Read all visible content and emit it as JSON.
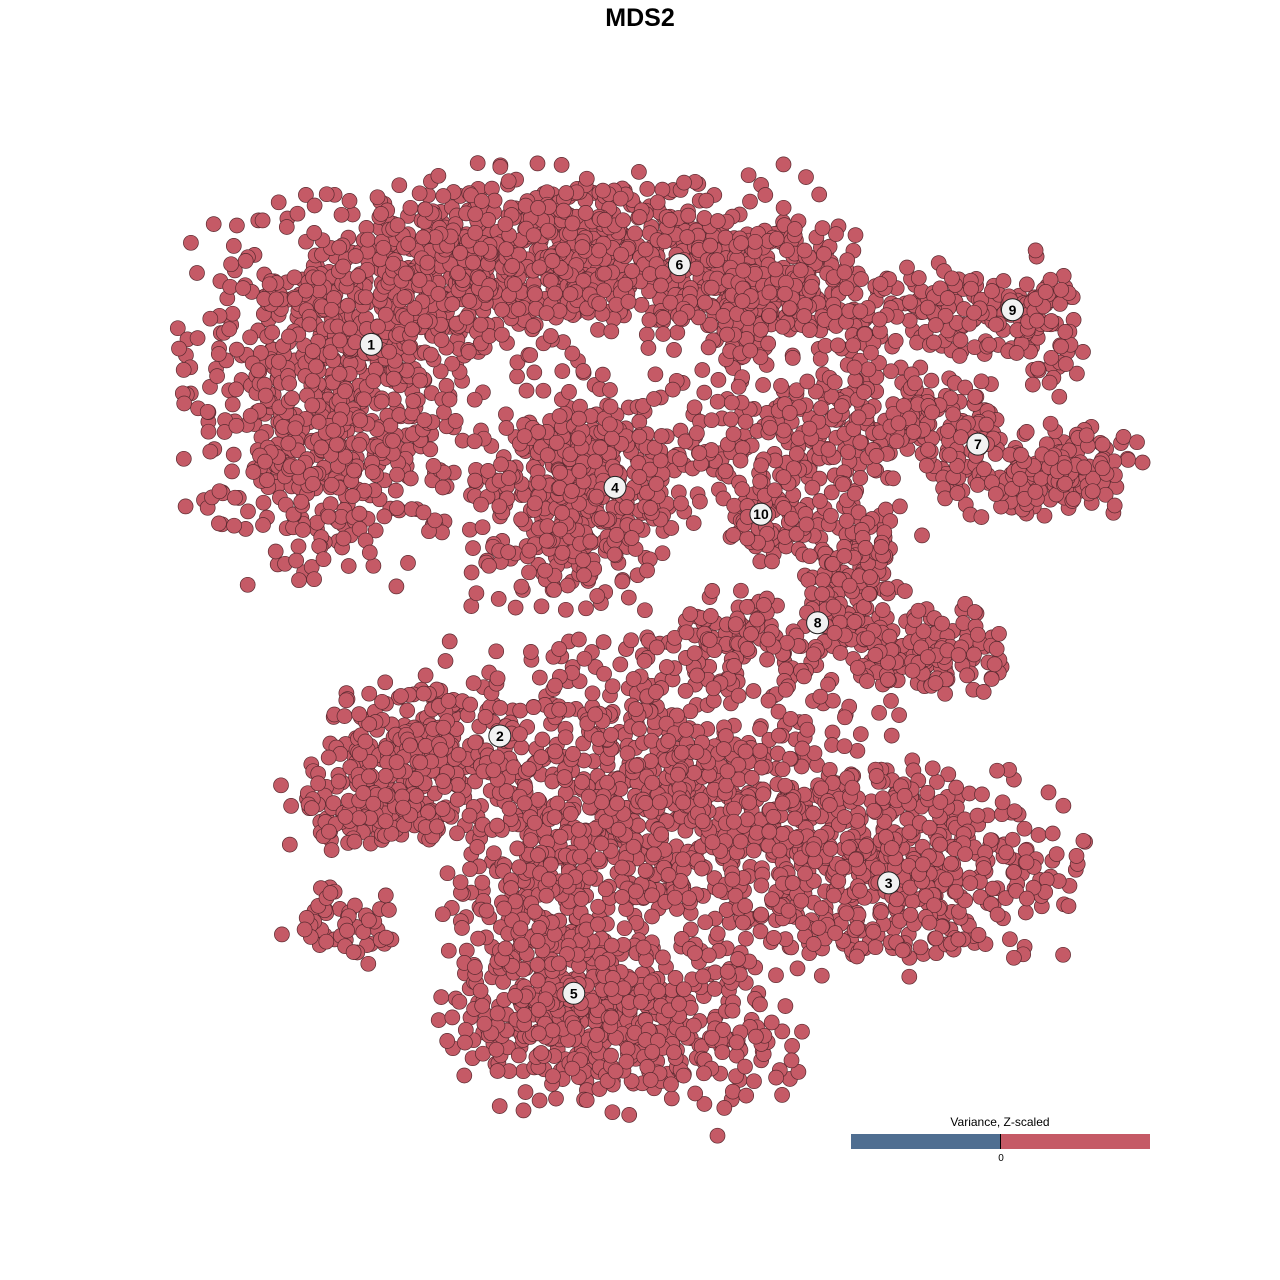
{
  "chart_data": {
    "type": "scatter",
    "title": "MDS2",
    "xlabel": "",
    "ylabel": "",
    "grid": false,
    "axes_visible": false,
    "point_color": "#c55a66",
    "point_outline": "#5a2a30",
    "cluster_labels": [
      {
        "label": "1",
        "x": -28.0,
        "y": 30.8
      },
      {
        "label": "2",
        "x": -14.6,
        "y": -10.0
      },
      {
        "label": "3",
        "x": 25.9,
        "y": -25.3
      },
      {
        "label": "4",
        "x": -2.6,
        "y": 15.9
      },
      {
        "label": "5",
        "x": -6.9,
        "y": -36.8
      },
      {
        "label": "6",
        "x": 4.1,
        "y": 39.1
      },
      {
        "label": "7",
        "x": 35.2,
        "y": 20.4
      },
      {
        "label": "8",
        "x": 18.5,
        "y": 1.8
      },
      {
        "label": "9",
        "x": 38.8,
        "y": 34.4
      },
      {
        "label": "10",
        "x": 12.6,
        "y": 13.1
      }
    ],
    "legend": {
      "title": "Variance, Z-scaled",
      "placement": "bottom-right",
      "low_color": "#4f6e91",
      "high_color": "#c55a66",
      "tick_label": "0"
    }
  }
}
